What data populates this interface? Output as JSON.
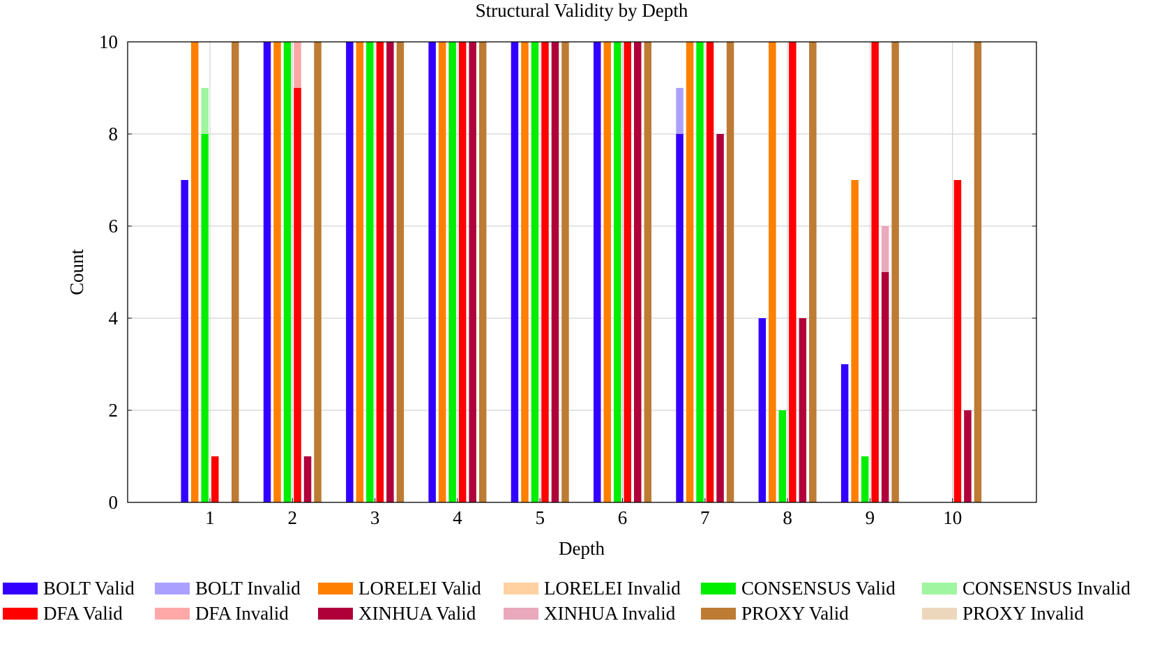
{
  "chart_data": {
    "type": "bar",
    "stacked_pairs": true,
    "title": "Structural Validity by Depth",
    "xlabel": "Depth",
    "ylabel": "Count",
    "ylim": [
      0,
      10
    ],
    "yticks": [
      "0",
      "2",
      "4",
      "6",
      "8",
      "10"
    ],
    "categories": [
      "1",
      "2",
      "3",
      "4",
      "5",
      "6",
      "7",
      "8",
      "9",
      "10"
    ],
    "grid": true,
    "series": [
      {
        "name": "BOLT",
        "color_valid": "#3300ff",
        "color_invalid": "#aaa0ff",
        "valid": [
          7,
          10,
          10,
          10,
          10,
          10,
          8,
          4,
          3,
          0
        ],
        "invalid": [
          0,
          0,
          0,
          0,
          0,
          0,
          1,
          0,
          0,
          0
        ]
      },
      {
        "name": "LORELEI",
        "color_valid": "#ff8000",
        "color_invalid": "#ffd0a0",
        "valid": [
          10,
          10,
          10,
          10,
          10,
          10,
          10,
          10,
          7,
          0
        ],
        "invalid": [
          0,
          0,
          0,
          0,
          0,
          0,
          0,
          0,
          0,
          0
        ]
      },
      {
        "name": "CONSENSUS",
        "color_valid": "#00ee00",
        "color_invalid": "#a0f5a0",
        "valid": [
          8,
          10,
          10,
          10,
          10,
          10,
          10,
          2,
          1,
          0
        ],
        "invalid": [
          1,
          0,
          0,
          0,
          0,
          0,
          0,
          0,
          0,
          0
        ]
      },
      {
        "name": "DFA",
        "color_valid": "#ff0000",
        "color_invalid": "#ffa8a8",
        "valid": [
          1,
          9,
          10,
          10,
          10,
          10,
          10,
          10,
          10,
          7
        ],
        "invalid": [
          0,
          1,
          0,
          0,
          0,
          0,
          0,
          0,
          0,
          0
        ]
      },
      {
        "name": "XINHUA",
        "color_valid": "#b0003a",
        "color_invalid": "#eaa8bc",
        "valid": [
          0,
          1,
          10,
          10,
          10,
          10,
          8,
          4,
          5,
          2
        ],
        "invalid": [
          0,
          0,
          0,
          0,
          0,
          0,
          0,
          0,
          1,
          0
        ]
      },
      {
        "name": "PROXY",
        "color_valid": "#bd7b34",
        "color_invalid": "#ecd7bd",
        "valid": [
          10,
          10,
          10,
          10,
          10,
          10,
          10,
          10,
          10,
          10
        ],
        "invalid": [
          0,
          0,
          0,
          0,
          0,
          0,
          0,
          0,
          0,
          0
        ]
      }
    ],
    "legend_position": "bottom",
    "legend": [
      [
        {
          "label": "BOLT Valid",
          "color": "#3300ff"
        },
        {
          "label": "BOLT Invalid",
          "color": "#aaa0ff"
        },
        {
          "label": "LORELEI Valid",
          "color": "#ff8000"
        },
        {
          "label": "LORELEI Invalid",
          "color": "#ffd0a0"
        },
        {
          "label": "CONSENSUS Valid",
          "color": "#00ee00"
        },
        {
          "label": "CONSENSUS Invalid",
          "color": "#a0f5a0"
        }
      ],
      [
        {
          "label": "DFA Valid",
          "color": "#ff0000"
        },
        {
          "label": "DFA Invalid",
          "color": "#ffa8a8"
        },
        {
          "label": "XINHUA Valid",
          "color": "#b0003a"
        },
        {
          "label": "XINHUA Invalid",
          "color": "#eaa8bc"
        },
        {
          "label": "PROXY Valid",
          "color": "#bd7b34"
        },
        {
          "label": "PROXY Invalid",
          "color": "#ecd7bd"
        }
      ]
    ]
  }
}
